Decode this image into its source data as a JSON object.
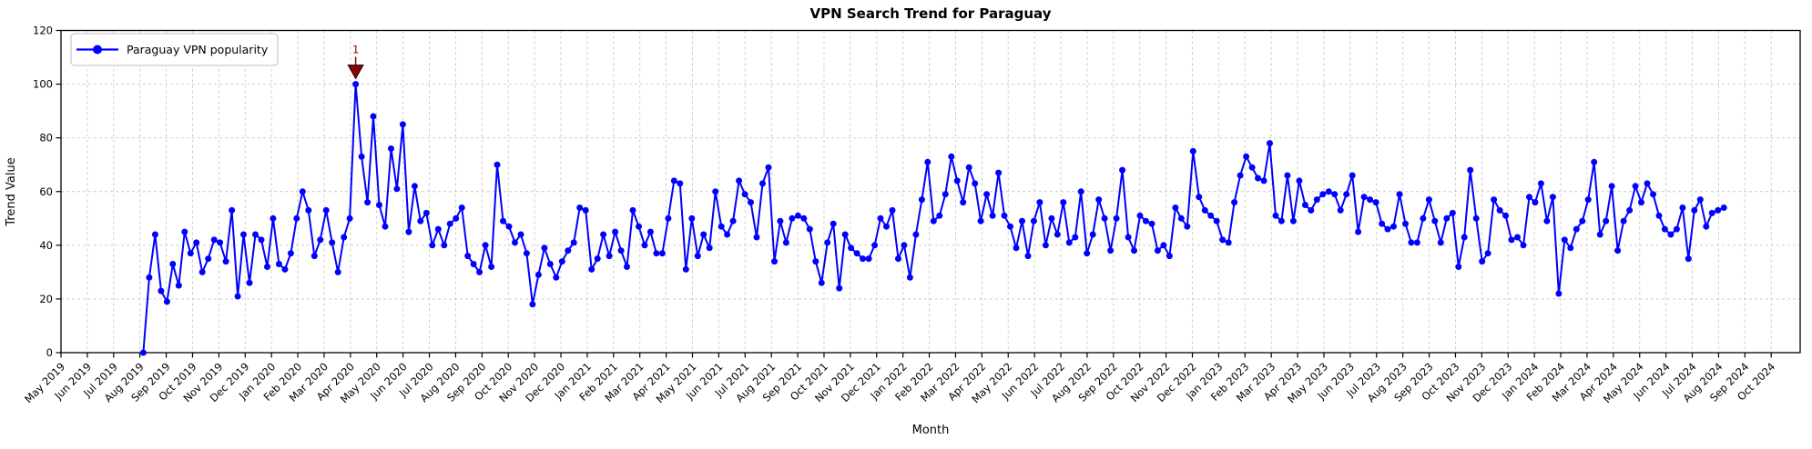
{
  "title": "VPN Search Trend for Paraguay",
  "axes": {
    "x_label": "Month",
    "y_label": "Trend Value"
  },
  "legend": {
    "label": "Paraguay VPN popularity",
    "position": "upper left"
  },
  "annotation": {
    "label": "1",
    "point_index": 36,
    "value": 100
  },
  "colors": {
    "line": "#0000ff",
    "marker": "#0000ff",
    "annotation": "#8b0000",
    "grid": "#c9c9c9",
    "spine": "#000000",
    "legend_border": "#cccccc",
    "background": "#ffffff"
  },
  "chart_data": {
    "type": "line",
    "title": "VPN Search Trend for Paraguay",
    "xlabel": "Month",
    "ylabel": "Trend Value",
    "ylim": [
      0,
      120
    ],
    "y_ticks": [
      0,
      20,
      40,
      60,
      80,
      100,
      120
    ],
    "grid": true,
    "legend_position": "upper left",
    "x_tick_labels": [
      "May 2019",
      "Jun 2019",
      "Jul 2019",
      "Aug 2019",
      "Sep 2019",
      "Oct 2019",
      "Nov 2019",
      "Dec 2019",
      "Jan 2020",
      "Feb 2020",
      "Mar 2020",
      "Apr 2020",
      "May 2020",
      "Jun 2020",
      "Jul 2020",
      "Aug 2020",
      "Sep 2020",
      "Oct 2020",
      "Nov 2020",
      "Dec 2020",
      "Jan 2021",
      "Feb 2021",
      "Mar 2021",
      "Apr 2021",
      "May 2021",
      "Jun 2021",
      "Jul 2021",
      "Aug 2021",
      "Sep 2021",
      "Oct 2021",
      "Nov 2021",
      "Dec 2021",
      "Jan 2022",
      "Feb 2022",
      "Mar 2022",
      "Apr 2022",
      "May 2022",
      "Jun 2022",
      "Jul 2022",
      "Aug 2022",
      "Sep 2022",
      "Oct 2022",
      "Nov 2022",
      "Dec 2022",
      "Jan 2023",
      "Feb 2023",
      "Mar 2023",
      "Apr 2023",
      "May 2023",
      "Jun 2023",
      "Jul 2023",
      "Aug 2023",
      "Sep 2023",
      "Oct 2023",
      "Nov 2023",
      "Dec 2023",
      "Jan 2024",
      "Feb 2024",
      "Mar 2024",
      "Apr 2024",
      "May 2024",
      "Jun 2024",
      "Jul 2024",
      "Aug 2024",
      "Sep 2024",
      "Oct 2024"
    ],
    "x_start_month_index": 3.13,
    "x_end_month_index": 63.2,
    "series": [
      {
        "name": "Paraguay VPN popularity",
        "frequency": "weekly",
        "first_point": "Aug 2019",
        "last_point": "Aug 2024",
        "values": [
          0,
          28,
          44,
          23,
          19,
          33,
          25,
          45,
          37,
          41,
          30,
          35,
          42,
          41,
          34,
          53,
          21,
          44,
          26,
          44,
          42,
          32,
          50,
          33,
          31,
          37,
          50,
          60,
          53,
          36,
          42,
          53,
          41,
          30,
          43,
          50,
          100,
          73,
          56,
          88,
          55,
          47,
          76,
          61,
          85,
          45,
          62,
          49,
          52,
          40,
          46,
          40,
          48,
          50,
          54,
          36,
          33,
          30,
          40,
          32,
          70,
          49,
          47,
          41,
          44,
          37,
          18,
          29,
          39,
          33,
          28,
          34,
          38,
          41,
          54,
          53,
          31,
          35,
          44,
          36,
          45,
          38,
          32,
          53,
          47,
          40,
          45,
          37,
          37,
          50,
          64,
          63,
          31,
          50,
          36,
          44,
          39,
          60,
          47,
          44,
          49,
          64,
          59,
          56,
          43,
          63,
          69,
          34,
          49,
          41,
          50,
          51,
          50,
          46,
          34,
          26,
          41,
          48,
          24,
          44,
          39,
          37,
          35,
          35,
          40,
          50,
          47,
          53,
          35,
          40,
          28,
          44,
          57,
          71,
          49,
          51,
          59,
          73,
          64,
          56,
          69,
          63,
          49,
          59,
          51,
          67,
          51,
          47,
          39,
          49,
          36,
          49,
          56,
          40,
          50,
          44,
          56,
          41,
          43,
          60,
          37,
          44,
          57,
          50,
          38,
          50,
          68,
          43,
          38,
          51,
          49,
          48,
          38,
          40,
          36,
          54,
          50,
          47,
          75,
          58,
          53,
          51,
          49,
          42,
          41,
          56,
          66,
          73,
          69,
          65,
          64,
          78,
          51,
          49,
          66,
          49,
          64,
          55,
          53,
          57,
          59,
          60,
          59,
          53,
          59,
          66,
          45,
          58,
          57,
          56,
          48,
          46,
          47,
          59,
          48,
          41,
          41,
          50,
          57,
          49,
          41,
          50,
          52,
          32,
          43,
          68,
          50,
          34,
          37,
          57,
          53,
          51,
          42,
          43,
          40,
          58,
          56,
          63,
          49,
          58,
          22,
          42,
          39,
          46,
          49,
          57,
          71,
          44,
          49,
          62,
          38,
          49,
          53,
          62,
          56,
          63,
          59,
          51,
          46,
          44,
          46,
          54,
          35,
          53,
          57,
          47,
          52,
          53,
          54
        ]
      }
    ],
    "annotations": [
      {
        "label": "1",
        "point_index": 36,
        "value": 100,
        "color": "#8b0000",
        "marker": "triangle-down"
      }
    ]
  }
}
